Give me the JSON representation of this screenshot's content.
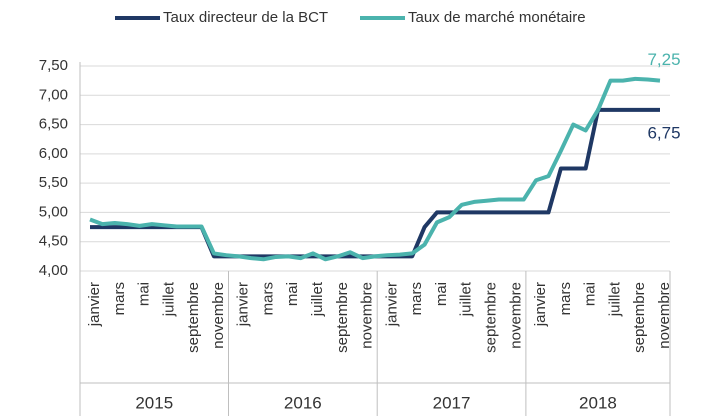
{
  "chart_data": {
    "type": "line",
    "categories": [
      "janvier",
      null,
      "mars",
      null,
      "mai",
      null,
      "juillet",
      null,
      "septembre",
      null,
      "novembre",
      null,
      "janvier",
      null,
      "mars",
      null,
      "mai",
      null,
      "juillet",
      null,
      "septembre",
      null,
      "novembre",
      null,
      "janvier",
      null,
      "mars",
      null,
      "mai",
      null,
      "juillet",
      null,
      "septembre",
      null,
      "novembre",
      null,
      "janvier",
      null,
      "mars",
      null,
      "mai",
      null,
      "juillet",
      null,
      "septembre",
      null,
      "novembre"
    ],
    "year_labels": [
      "2015",
      "2016",
      "2017",
      "2018"
    ],
    "series": [
      {
        "name": "Taux directeur de la BCT",
        "color": "#1f3864",
        "values": [
          4.75,
          4.75,
          4.75,
          4.75,
          4.75,
          4.75,
          4.75,
          4.75,
          4.75,
          4.75,
          4.25,
          4.25,
          4.25,
          4.25,
          4.25,
          4.25,
          4.25,
          4.25,
          4.25,
          4.25,
          4.25,
          4.25,
          4.25,
          4.25,
          4.25,
          4.25,
          4.25,
          4.75,
          5.0,
          5.0,
          5.0,
          5.0,
          5.0,
          5.0,
          5.0,
          5.0,
          5.0,
          5.0,
          5.75,
          5.75,
          5.75,
          6.75,
          6.75,
          6.75,
          6.75,
          6.75,
          6.75
        ],
        "value_labels": [
          null,
          null,
          null,
          null,
          null,
          null,
          null,
          null,
          null,
          null,
          null,
          null,
          null,
          null,
          null,
          null,
          null,
          null,
          null,
          null,
          null,
          null,
          null,
          null,
          null,
          null,
          null,
          null,
          null,
          null,
          null,
          null,
          null,
          null,
          null,
          null,
          null,
          null,
          null,
          null,
          null,
          null,
          null,
          null,
          null,
          null,
          "6,75"
        ]
      },
      {
        "name": "Taux de marché monétaire",
        "color": "#4bb3ad",
        "values": [
          4.88,
          4.8,
          4.82,
          4.8,
          4.77,
          4.8,
          4.78,
          4.76,
          4.76,
          4.76,
          4.3,
          4.27,
          4.25,
          4.22,
          4.2,
          4.24,
          4.25,
          4.22,
          4.3,
          4.2,
          4.25,
          4.32,
          4.22,
          4.25,
          4.27,
          4.28,
          4.3,
          4.45,
          4.83,
          4.92,
          5.13,
          5.18,
          5.2,
          5.22,
          5.22,
          5.22,
          5.55,
          5.62,
          6.05,
          6.5,
          6.4,
          6.75,
          7.25,
          7.25,
          7.28,
          7.27,
          7.25
        ],
        "value_labels": [
          null,
          null,
          null,
          null,
          null,
          null,
          null,
          null,
          null,
          null,
          null,
          null,
          null,
          null,
          null,
          null,
          null,
          null,
          null,
          null,
          null,
          null,
          null,
          null,
          null,
          null,
          null,
          null,
          null,
          null,
          null,
          null,
          null,
          null,
          null,
          null,
          null,
          null,
          null,
          null,
          null,
          null,
          null,
          null,
          null,
          null,
          "7,25"
        ]
      }
    ],
    "ylim": [
      4.0,
      7.5
    ],
    "yticks": [
      {
        "value": 4.0,
        "label": "4,00"
      },
      {
        "value": 4.5,
        "label": "4,50"
      },
      {
        "value": 5.0,
        "label": "5,00"
      },
      {
        "value": 5.5,
        "label": "5,50"
      },
      {
        "value": 6.0,
        "label": "6,00"
      },
      {
        "value": 6.5,
        "label": "6,50"
      },
      {
        "value": 7.0,
        "label": "7,00"
      },
      {
        "value": 7.5,
        "label": "7,50"
      }
    ],
    "grid": true,
    "legend": "top"
  }
}
